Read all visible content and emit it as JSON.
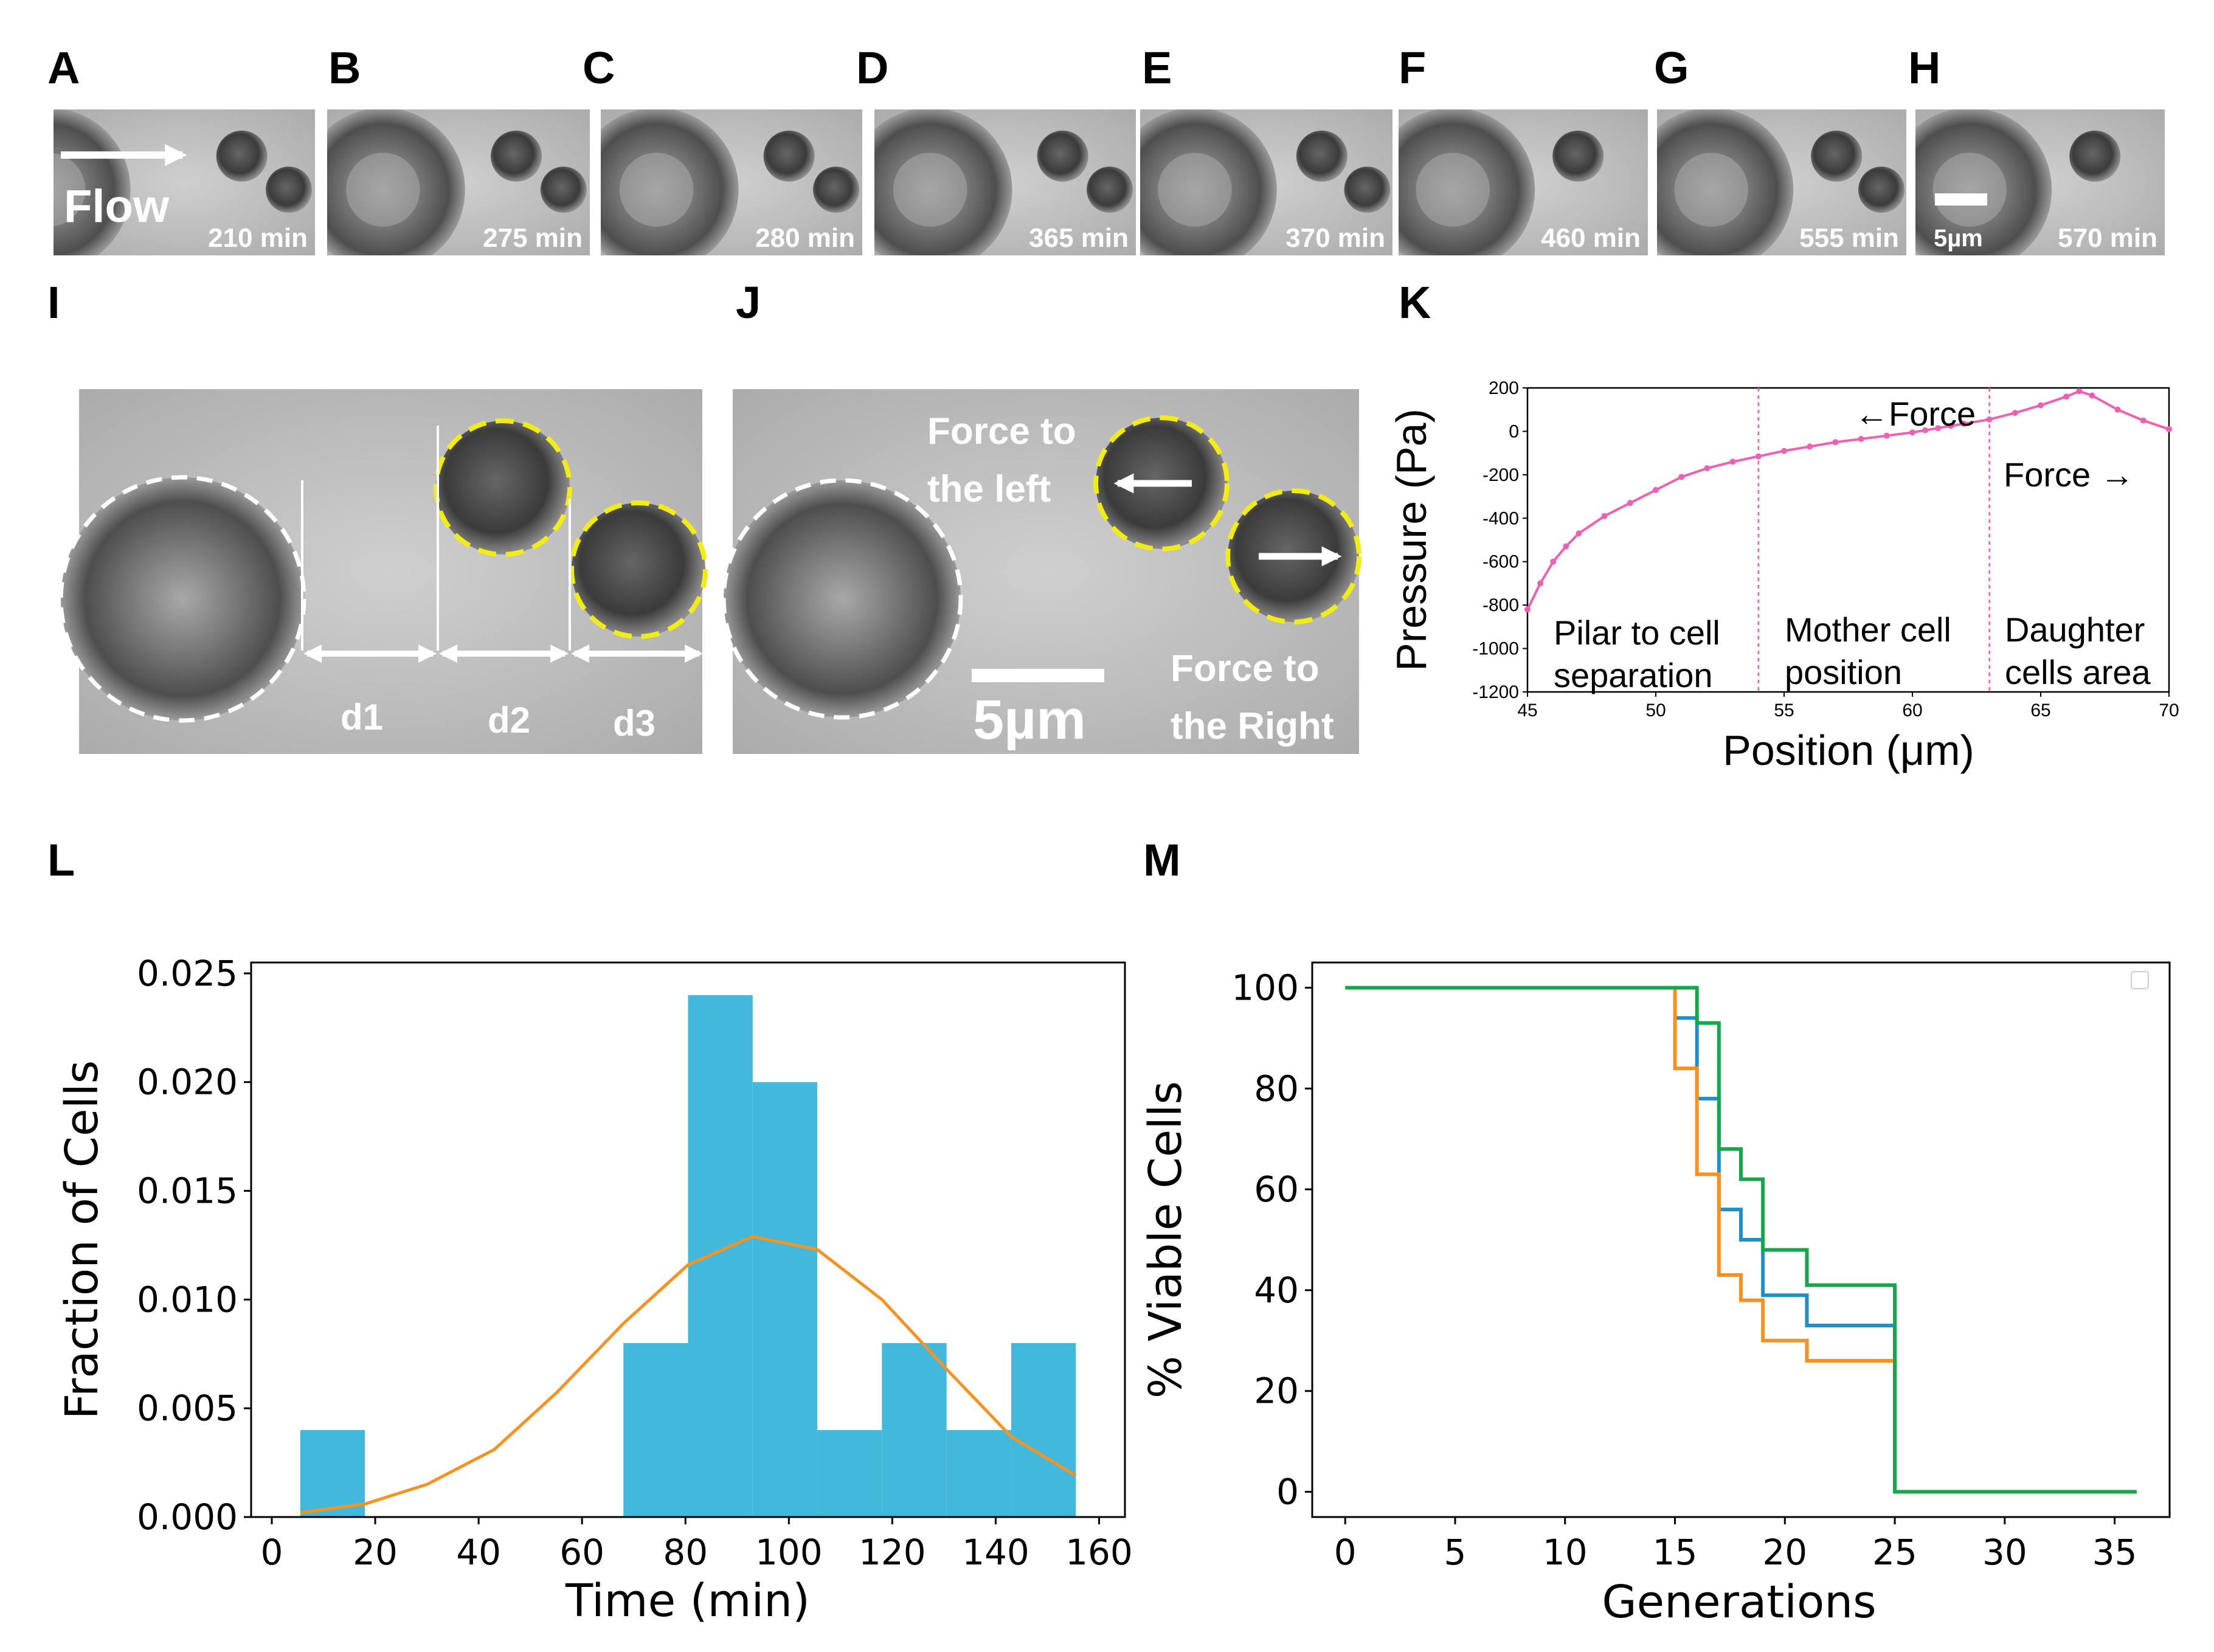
{
  "panel_labels": [
    "A",
    "B",
    "C",
    "D",
    "E",
    "F",
    "G",
    "H",
    "I",
    "J",
    "K",
    "L",
    "M"
  ],
  "timelapse": {
    "frames": [
      {
        "label": "A",
        "time": "210 min"
      },
      {
        "label": "B",
        "time": "275 min"
      },
      {
        "label": "C",
        "time": "280 min"
      },
      {
        "label": "D",
        "time": "365 min"
      },
      {
        "label": "E",
        "time": "370 min"
      },
      {
        "label": "F",
        "time": "460 min"
      },
      {
        "label": "G",
        "time": "555 min"
      },
      {
        "label": "H",
        "time": "570 min"
      }
    ],
    "flow_label": "Flow",
    "scale_label": "5µm"
  },
  "panel_I": {
    "d1": "d1",
    "d2": "d2",
    "d3": "d3"
  },
  "panel_J": {
    "force_left_1": "Force to",
    "force_left_2": "the left",
    "force_right_1": "Force to",
    "force_right_2": "the Right",
    "scale_label": "5µm"
  },
  "colors": {
    "histogram": "#42b8dc",
    "fit": "#f7921e",
    "blue_line": "#1e8fc8",
    "green_line": "#14a84a",
    "orange_line": "#f7921e",
    "pressure": "#f05fb4"
  },
  "chart_data": [
    {
      "id": "K",
      "type": "line",
      "xlabel": "Position (μm)",
      "ylabel": "Pressure (Pa)",
      "xlim": [
        45,
        70
      ],
      "ylim": [
        -1200,
        200
      ],
      "xticks": [
        45,
        50,
        55,
        60,
        65,
        70
      ],
      "yticks": [
        200,
        0,
        -200,
        -400,
        -600,
        -800,
        -1000,
        -1200
      ],
      "x": [
        45,
        45.5,
        46,
        46.5,
        47,
        48,
        49,
        50,
        51,
        52,
        53,
        54,
        55,
        56,
        57,
        58,
        59,
        60,
        60.5,
        61,
        61.5,
        62,
        63,
        64,
        65,
        66,
        66.5,
        67,
        68,
        69,
        70
      ],
      "y": [
        -820,
        -700,
        -600,
        -530,
        -470,
        -390,
        -330,
        -270,
        -210,
        -170,
        -140,
        -115,
        -90,
        -70,
        -50,
        -35,
        -20,
        -5,
        5,
        15,
        25,
        35,
        55,
        85,
        120,
        160,
        185,
        165,
        100,
        50,
        10
      ],
      "vlines": [
        54,
        63
      ],
      "annotations": {
        "force_left": "←Force",
        "force_right": "Force →",
        "region1_1": "Pilar to cell",
        "region1_2": "separation",
        "region2_1": "Mother cell",
        "region2_2": "position",
        "region3_1": "Daughter",
        "region3_2": "cells area"
      }
    },
    {
      "id": "L",
      "type": "bar",
      "xlabel": "Time (min)",
      "ylabel": "Fraction of Cells",
      "xlim": [
        0,
        160
      ],
      "ylim": [
        0,
        0.025
      ],
      "xticks": [
        0,
        20,
        40,
        60,
        80,
        100,
        120,
        140,
        160
      ],
      "yticks": [
        "0.000",
        "0.005",
        "0.010",
        "0.015",
        "0.020",
        "0.025"
      ],
      "bins": [
        {
          "x0": 5.5,
          "x1": 18,
          "value": 0.004
        },
        {
          "x0": 68,
          "x1": 80.5,
          "value": 0.008
        },
        {
          "x0": 80.5,
          "x1": 93,
          "value": 0.024
        },
        {
          "x0": 93,
          "x1": 105.5,
          "value": 0.02
        },
        {
          "x0": 105.5,
          "x1": 118,
          "value": 0.004
        },
        {
          "x0": 118,
          "x1": 130.5,
          "value": 0.008
        },
        {
          "x0": 130.5,
          "x1": 143,
          "value": 0.004
        },
        {
          "x0": 143,
          "x1": 155.5,
          "value": 0.008
        }
      ],
      "fit": {
        "x": [
          5.5,
          18,
          30,
          43,
          55,
          68,
          80.5,
          93,
          105.5,
          118,
          130.5,
          143,
          155.5
        ],
        "y": [
          0.0002,
          0.0006,
          0.0015,
          0.0031,
          0.0057,
          0.0089,
          0.0116,
          0.0129,
          0.0123,
          0.01,
          0.0068,
          0.0037,
          0.0019
        ]
      }
    },
    {
      "id": "M",
      "type": "line",
      "xlabel": "Generations",
      "ylabel": "% Viable Cells",
      "xlim": [
        -1.5,
        37.5
      ],
      "ylim": [
        -5,
        105
      ],
      "xticks": [
        0,
        5,
        10,
        15,
        20,
        25,
        30,
        35
      ],
      "yticks": [
        0,
        20,
        40,
        60,
        80,
        100
      ],
      "series": [
        {
          "name": "blue",
          "color": "#1e8fc8",
          "x": [
            0,
            15,
            16,
            17,
            18,
            19,
            21,
            25,
            36
          ],
          "y": [
            100,
            94,
            78,
            56,
            50,
            39,
            33,
            0,
            0
          ]
        },
        {
          "name": "orange",
          "color": "#f7921e",
          "x": [
            0,
            15,
            16,
            17,
            18,
            19,
            21,
            25,
            36
          ],
          "y": [
            100,
            84,
            63,
            43,
            38,
            30,
            26,
            0,
            0
          ]
        },
        {
          "name": "green",
          "color": "#14a84a",
          "x": [
            0,
            16,
            17,
            18,
            19,
            21,
            25,
            36
          ],
          "y": [
            100,
            93,
            68,
            62,
            48,
            41,
            0,
            0
          ]
        }
      ]
    }
  ]
}
